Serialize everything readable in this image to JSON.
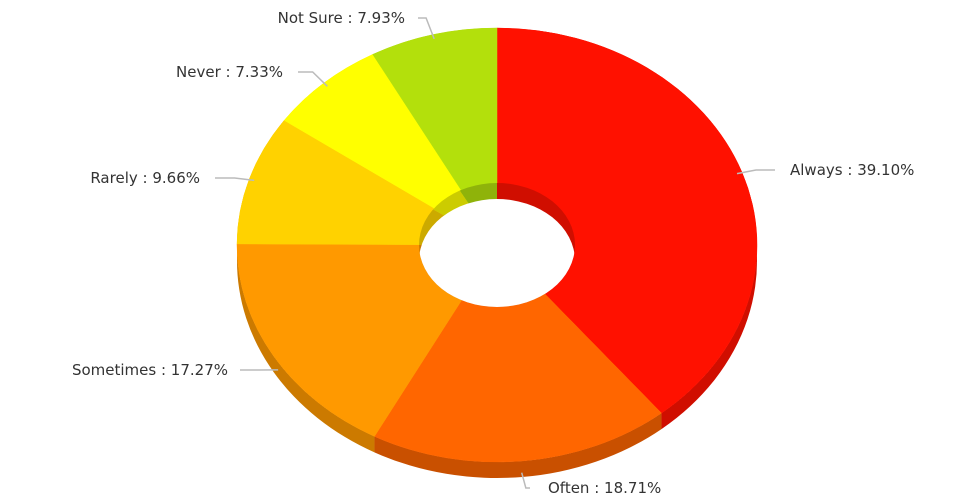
{
  "chart_data": {
    "type": "donut",
    "categories": [
      "Always",
      "Often",
      "Sometimes",
      "Rarely",
      "Never",
      "Not Sure"
    ],
    "values": [
      39.1,
      18.71,
      17.27,
      9.66,
      7.33,
      7.93
    ],
    "value_labels": [
      "39.10%",
      "18.71%",
      "17.27%",
      "9.66%",
      "7.33%",
      "7.93%"
    ],
    "label_separator": " : ",
    "colors": [
      "#ff1100",
      "#ff6600",
      "#ff9900",
      "#ffd200",
      "#ffff00",
      "#b3e00c"
    ],
    "side_colors": [
      "#d00e00",
      "#c95000",
      "#cc7a00",
      "#ccaa00",
      "#cccc00",
      "#8fb30a"
    ]
  }
}
